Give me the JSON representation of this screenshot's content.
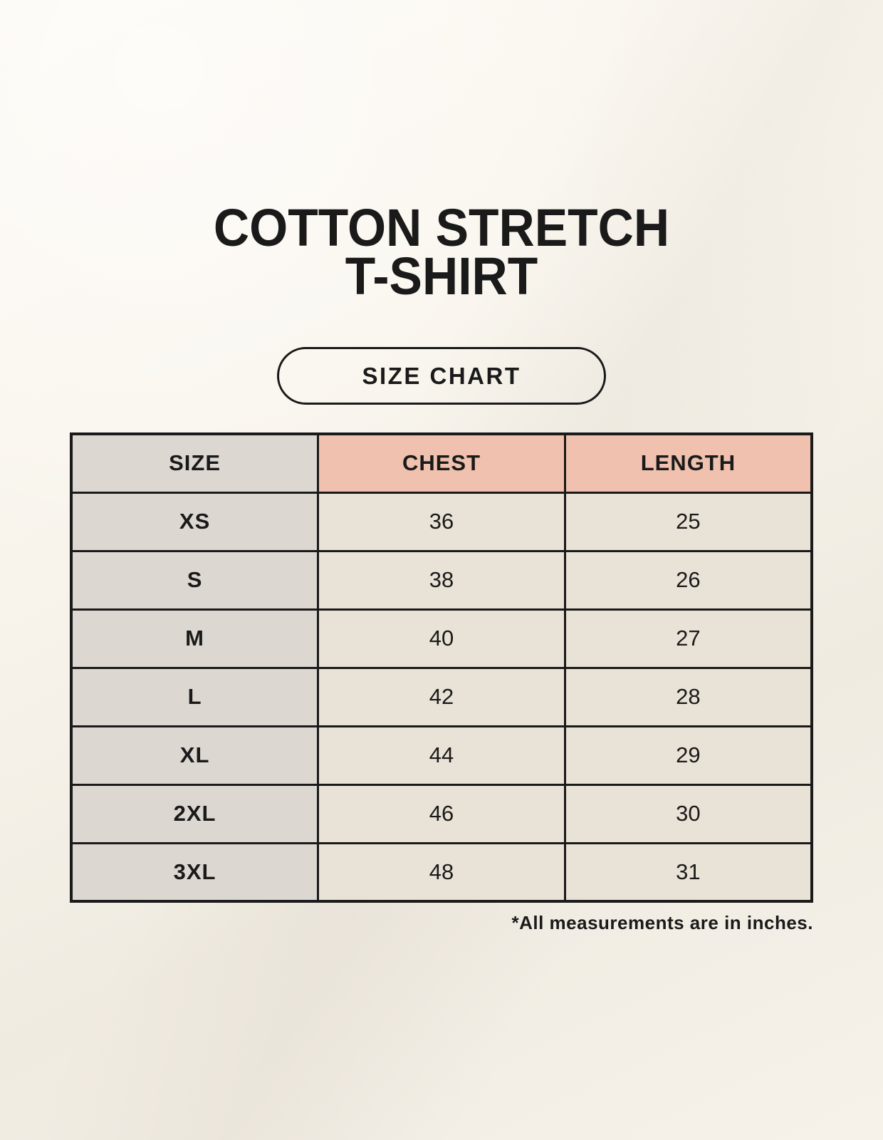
{
  "page": {
    "title_line1": "COTTON STRETCH",
    "title_line2": "T-SHIRT",
    "badge_label": "SIZE CHART",
    "footnote": "*All measurements are in inches."
  },
  "table": {
    "columns": [
      "SIZE",
      "CHEST",
      "LENGTH"
    ],
    "rows": [
      {
        "size": "XS",
        "chest": "36",
        "length": "25"
      },
      {
        "size": "S",
        "chest": "38",
        "length": "26"
      },
      {
        "size": "M",
        "chest": "40",
        "length": "27"
      },
      {
        "size": "L",
        "chest": "42",
        "length": "28"
      },
      {
        "size": "XL",
        "chest": "44",
        "length": "29"
      },
      {
        "size": "2XL",
        "chest": "46",
        "length": "30"
      },
      {
        "size": "3XL",
        "chest": "48",
        "length": "31"
      }
    ]
  },
  "colors": {
    "background": "#f8f4ec",
    "header_size_bg": "#ddd7d1",
    "header_measure_bg": "#efc1ae",
    "size_col_bg": "#ddd7d1",
    "data_cell_bg": "#e9e2d6",
    "border": "#1a1a1a",
    "text": "#1a1a1a"
  }
}
